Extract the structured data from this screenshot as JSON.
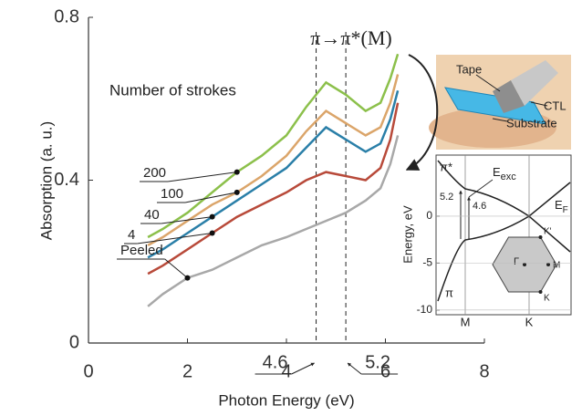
{
  "chart_data": {
    "type": "line",
    "x_label": "Photon Energy (eV)",
    "y_label": "Absorption (a. u.)",
    "annotation": "π→π*(M)",
    "legend_title": "Number of strokes",
    "x": [
      1.2,
      1.5,
      2,
      2.5,
      3,
      3.5,
      4,
      4.4,
      4.8,
      5.2,
      5.6,
      5.9,
      6.1,
      6.25
    ],
    "series": [
      {
        "name": "200",
        "color": "#8cc04b",
        "values": [
          0.26,
          0.28,
          0.32,
          0.37,
          0.42,
          0.46,
          0.51,
          0.58,
          0.64,
          0.61,
          0.57,
          0.59,
          0.65,
          0.71
        ]
      },
      {
        "name": "100",
        "color": "#dba56a",
        "values": [
          0.24,
          0.26,
          0.3,
          0.34,
          0.37,
          0.41,
          0.46,
          0.52,
          0.57,
          0.54,
          0.51,
          0.53,
          0.59,
          0.66
        ]
      },
      {
        "name": "40",
        "color": "#2a7fa8",
        "values": [
          0.21,
          0.23,
          0.27,
          0.31,
          0.35,
          0.39,
          0.43,
          0.48,
          0.53,
          0.5,
          0.47,
          0.49,
          0.55,
          0.62
        ]
      },
      {
        "name": "4",
        "color": "#b84a3a",
        "values": [
          0.17,
          0.19,
          0.23,
          0.27,
          0.31,
          0.34,
          0.37,
          0.4,
          0.42,
          0.41,
          0.4,
          0.43,
          0.5,
          0.59
        ]
      },
      {
        "name": "Peeled",
        "color": "#a8a8a8",
        "values": [
          0.09,
          0.12,
          0.16,
          0.18,
          0.21,
          0.24,
          0.26,
          0.28,
          0.3,
          0.32,
          0.35,
          0.38,
          0.44,
          0.51
        ]
      }
    ],
    "vlines": [
      4.6,
      5.2
    ],
    "xlim": [
      0,
      8
    ],
    "ylim": [
      0,
      0.8
    ],
    "xticks": [
      0,
      2,
      4,
      6,
      8
    ],
    "yticks": [
      0,
      0.4,
      0.8
    ]
  },
  "photo_inset": {
    "labels": [
      "Tape",
      "CTL",
      "Substrate"
    ]
  },
  "band_inset": {
    "y_label": "Energy, eV",
    "ylim": [
      -10.5,
      6.5
    ],
    "yticks": [
      0,
      -5,
      -10
    ],
    "x_labels": [
      "M",
      "K"
    ],
    "band_labels": [
      "π*",
      "π"
    ],
    "exciton_label": "E",
    "exciton_sub": "exc",
    "fermi_label": "E",
    "fermi_sub": "F",
    "gaps": [
      "5.2",
      "4.6"
    ],
    "bz_points": [
      "Γ",
      "K'",
      "M",
      "K"
    ]
  }
}
